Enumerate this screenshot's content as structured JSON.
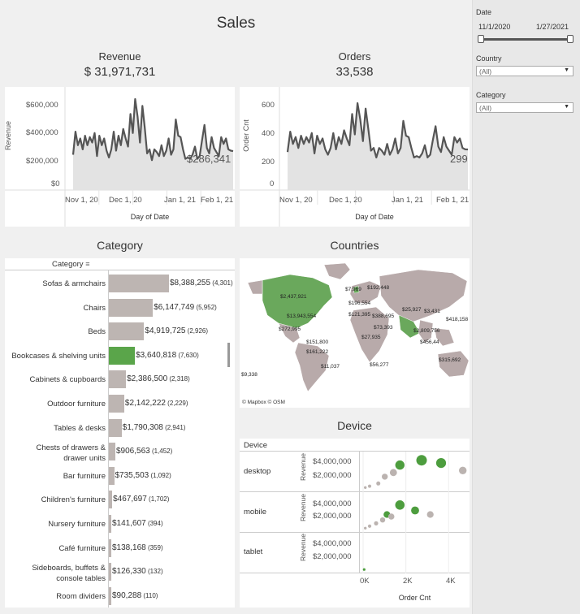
{
  "dashboard": {
    "title": "Sales"
  },
  "revenue": {
    "title": "Revenue",
    "kpi": "$ 31,971,731",
    "y_axis_label": "Revenue",
    "y_ticks": [
      "$600,000",
      "$400,000",
      "$200,000",
      "$0"
    ],
    "x_ticks": [
      "Nov 1, 20",
      "Dec 1, 20",
      "Jan 1, 21",
      "Feb 1, 21"
    ],
    "x_axis_label": "Day of Date",
    "last_label": "$286,341"
  },
  "orders": {
    "title": "Orders",
    "kpi": "33,538",
    "y_axis_label": "Order Cnt",
    "y_ticks": [
      "600",
      "400",
      "200",
      "0"
    ],
    "x_ticks": [
      "Nov 1, 20",
      "Dec 1, 20",
      "Jan 1, 21",
      "Feb 1, 21"
    ],
    "x_axis_label": "Day of Date",
    "last_label": "299"
  },
  "category": {
    "title": "Category",
    "header": "Category",
    "rows": [
      {
        "label": "Sofas & armchairs",
        "value": "$8,388,255",
        "count": "(4,301)",
        "v": 8388255
      },
      {
        "label": "Chairs",
        "value": "$6,147,749",
        "count": "(5,952)",
        "v": 6147749
      },
      {
        "label": "Beds",
        "value": "$4,919,725",
        "count": "(2,926)",
        "v": 4919725
      },
      {
        "label": "Bookcases & shelving units",
        "value": "$3,640,818",
        "count": "(7,630)",
        "v": 3640818,
        "highlight": true
      },
      {
        "label": "Cabinets & cupboards",
        "value": "$2,386,500",
        "count": "(2,318)",
        "v": 2386500
      },
      {
        "label": "Outdoor furniture",
        "value": "$2,142,222",
        "count": "(2,229)",
        "v": 2142222
      },
      {
        "label": "Tables & desks",
        "value": "$1,790,308",
        "count": "(2,941)",
        "v": 1790308
      },
      {
        "label": "Chests of drawers &",
        "label2": "drawer units",
        "value": "$906,563",
        "count": "(1,452)",
        "v": 906563
      },
      {
        "label": "Bar furniture",
        "value": "$735,503",
        "count": "(1,092)",
        "v": 735503
      },
      {
        "label": "Children's furniture",
        "value": "$467,697",
        "count": "(1,702)",
        "v": 467697
      },
      {
        "label": "Nursery furniture",
        "value": "$141,607",
        "count": "(394)",
        "v": 141607
      },
      {
        "label": "Café furniture",
        "value": "$138,168",
        "count": "(359)",
        "v": 138168
      },
      {
        "label": "Sideboards, buffets &",
        "label2": "console tables",
        "value": "$126,330",
        "count": "(132)",
        "v": 126330
      },
      {
        "label": "Room dividers",
        "value": "$90,288",
        "count": "(110)",
        "v": 90288
      }
    ]
  },
  "countries": {
    "title": "Countries",
    "attribution": "© Mapbox  © OSM",
    "labels": [
      "$2,437,921",
      "$13,943,554",
      "$272,995",
      "$151,800",
      "$161,222",
      "$11,037",
      "$7,969",
      "$192,448",
      "$196,554",
      "$121,395",
      "$388,695",
      "$73,393",
      "$27,935",
      "$25,927",
      "$3,431",
      "$2,809,756",
      "$418,158",
      "$456,44",
      "$56,277",
      "$315,692",
      "$9,338"
    ]
  },
  "device": {
    "title": "Device",
    "header": "Device",
    "rows": [
      "desktop",
      "mobile",
      "tablet"
    ],
    "y_label": "Revenue",
    "y_ticks": [
      "$4,000,000",
      "$2,000,000"
    ],
    "x_ticks": [
      "0K",
      "2K",
      "4K"
    ],
    "x_axis_label": "Order Cnt"
  },
  "filters": {
    "date_label": "Date",
    "date_start": "11/1/2020",
    "date_end": "1/27/2021",
    "country_label": "Country",
    "country_value": "(All)",
    "category_label": "Category",
    "category_value": "(All)"
  },
  "chart_data": [
    {
      "type": "area",
      "title": "Revenue",
      "xlabel": "Day of Date",
      "ylabel": "Revenue",
      "ylim": [
        0,
        700000
      ],
      "x_range": [
        "Oct 24, 2020",
        "Feb 3, 2021"
      ],
      "values": [
        260000,
        430000,
        330000,
        380000,
        300000,
        400000,
        330000,
        390000,
        350000,
        420000,
        250000,
        400000,
        330000,
        380000,
        290000,
        240000,
        300000,
        430000,
        290000,
        400000,
        330000,
        450000,
        380000,
        320000,
        560000,
        420000,
        670000,
        540000,
        350000,
        620000,
        460000,
        270000,
        300000,
        220000,
        300000,
        280000,
        250000,
        330000,
        250000,
        290000,
        380000,
        260000,
        300000,
        520000,
        400000,
        390000,
        300000,
        230000,
        240000,
        230000,
        260000,
        320000,
        230000,
        250000,
        370000,
        480000,
        310000,
        270000,
        390000,
        310000,
        280000,
        250000,
        390000,
        340000,
        380000,
        300000,
        290000,
        286341
      ]
    },
    {
      "type": "area",
      "title": "Orders",
      "xlabel": "Day of Date",
      "ylabel": "Order Cnt",
      "ylim": [
        0,
        700
      ],
      "x_range": [
        "Oct 24, 2020",
        "Feb 3, 2021"
      ],
      "values": [
        280,
        430,
        340,
        390,
        310,
        400,
        340,
        390,
        350,
        420,
        270,
        400,
        340,
        380,
        300,
        260,
        310,
        420,
        300,
        390,
        340,
        440,
        380,
        330,
        560,
        410,
        640,
        520,
        360,
        600,
        450,
        290,
        310,
        240,
        310,
        290,
        260,
        340,
        260,
        300,
        380,
        270,
        310,
        510,
        400,
        390,
        310,
        240,
        250,
        240,
        270,
        330,
        240,
        260,
        370,
        470,
        320,
        280,
        390,
        320,
        290,
        260,
        390,
        350,
        380,
        310,
        300,
        299
      ]
    },
    {
      "type": "bar",
      "title": "Category",
      "categories": [
        "Sofas & armchairs",
        "Chairs",
        "Beds",
        "Bookcases & shelving units",
        "Cabinets & cupboards",
        "Outdoor furniture",
        "Tables & desks",
        "Chests of drawers & drawer units",
        "Bar furniture",
        "Children's furniture",
        "Nursery furniture",
        "Café furniture",
        "Sideboards, buffets & console tables",
        "Room dividers"
      ],
      "values": [
        8388255,
        6147749,
        4919725,
        3640818,
        2386500,
        2142222,
        1790308,
        906563,
        735503,
        467697,
        141607,
        138168,
        126330,
        90288
      ]
    },
    {
      "type": "scatter",
      "title": "Device",
      "xlabel": "Order Cnt",
      "ylabel": "Revenue",
      "xlim": [
        0,
        4800
      ],
      "ylim": [
        0,
        5000000
      ],
      "series": [
        {
          "name": "desktop",
          "points": [
            [
              2700,
              4200000,
              "g"
            ],
            [
              1700,
              3500000,
              "g"
            ],
            [
              3600,
              3800000,
              "g"
            ],
            [
              4600,
              2700000,
              "o"
            ],
            [
              1400,
              2400000,
              "o"
            ],
            [
              1000,
              1800000,
              "o"
            ],
            [
              700,
              800000,
              "o"
            ],
            [
              300,
              400000,
              "o"
            ],
            [
              100,
              200000,
              "o"
            ]
          ]
        },
        {
          "name": "mobile",
          "points": [
            [
              1700,
              3600000,
              "g"
            ],
            [
              1100,
              2200000,
              "g"
            ],
            [
              2400,
              2800000,
              "g"
            ],
            [
              3100,
              2200000,
              "o"
            ],
            [
              1300,
              1900000,
              "o"
            ],
            [
              900,
              1400000,
              "o"
            ],
            [
              600,
              900000,
              "o"
            ],
            [
              300,
              500000,
              "o"
            ],
            [
              100,
              200000,
              "o"
            ]
          ]
        },
        {
          "name": "tablet",
          "points": [
            [
              50,
              100000,
              "g"
            ]
          ]
        }
      ]
    }
  ]
}
